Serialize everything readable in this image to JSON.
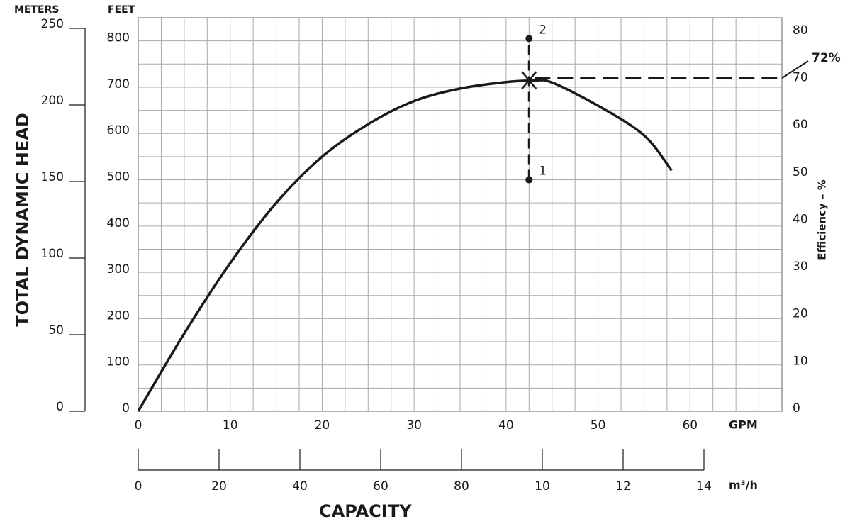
{
  "chart_data": {
    "type": "line",
    "y_title": "TOTAL DYNAMIC HEAD",
    "y2_title": "Efficiency – %",
    "x_title": "CAPACITY",
    "meters_unit": "METERS",
    "y_unit": "FEET",
    "x_unit": "GPM",
    "x2_unit": "m³/h",
    "x": [
      0,
      5,
      10,
      15,
      20,
      25,
      30,
      35,
      40,
      43,
      45,
      50,
      55,
      58
    ],
    "series": [
      {
        "color": "#1a1a1a",
        "values": [
          0,
          168,
          320,
          450,
          550,
          620,
          670,
          697,
          711,
          714,
          710,
          660,
          596,
          520
        ]
      }
    ],
    "xlim": [
      0,
      70
    ],
    "xticks": [
      0,
      10,
      20,
      30,
      40,
      50,
      60
    ],
    "ylim": [
      0,
      850
    ],
    "yticks": [
      0,
      100,
      200,
      300,
      400,
      500,
      600,
      700,
      800
    ],
    "y2lim": [
      0,
      83.3
    ],
    "y2ticks": [
      0,
      10,
      20,
      30,
      40,
      50,
      60,
      70,
      80
    ],
    "meters_lim": [
      0,
      250
    ],
    "meters_ticks": [
      0,
      50,
      100,
      150,
      200,
      250
    ],
    "x2lim": [
      0,
      14
    ],
    "x2ticks": [
      0,
      {
        "value": 2,
        "label": "20"
      },
      {
        "value": 4,
        "label": "40"
      },
      {
        "value": 6,
        "label": "60"
      },
      {
        "value": 8,
        "label": "80"
      },
      10,
      12,
      14
    ],
    "grid": true,
    "x_grid": [
      0,
      2.5,
      5,
      7.5,
      10,
      12.5,
      15,
      17.5,
      20,
      22.5,
      25,
      27.5,
      30,
      32.5,
      35,
      37.5,
      40,
      42.5,
      45,
      47.5,
      50,
      52.5,
      55,
      57.5,
      60,
      62.5,
      65,
      67.5,
      70
    ],
    "y_grid": [
      0,
      50,
      100,
      150,
      200,
      250,
      300,
      350,
      400,
      450,
      500,
      550,
      600,
      650,
      700,
      750,
      800,
      850
    ],
    "operating_point": {
      "x": 42.5,
      "y": 715,
      "label": "72%"
    },
    "points": [
      {
        "label": "1",
        "x": 42.5,
        "y": 500
      },
      {
        "label": "2",
        "x": 42.5,
        "y": 805
      }
    ]
  }
}
